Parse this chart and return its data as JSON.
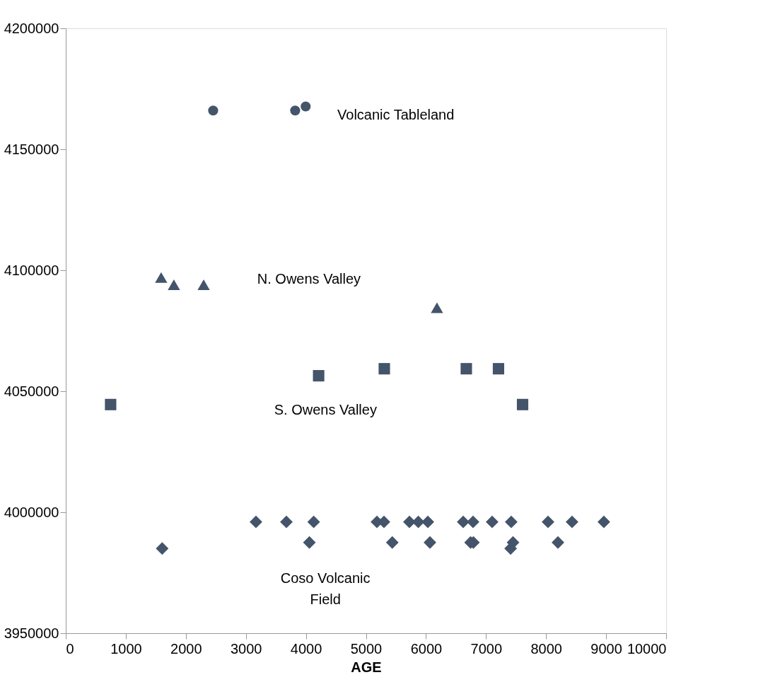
{
  "chart_data": {
    "type": "scatter",
    "xlabel": "AGE",
    "xlim": [
      0,
      10000
    ],
    "xticks": [
      0,
      1000,
      2000,
      3000,
      4000,
      5000,
      6000,
      7000,
      8000,
      9000,
      10000
    ],
    "ylim": [
      3950000,
      4200000
    ],
    "yticks": [
      3950000,
      4000000,
      4050000,
      4100000,
      4150000,
      4200000
    ],
    "grid": false,
    "series": [
      {
        "color": "#44546a",
        "marker": "circle",
        "x": [
          2455,
          3821,
          3996
        ],
        "values": [
          4166000,
          4166000,
          4167700
        ]
      },
      {
        "color": "#44546a",
        "marker": "triangle",
        "x": [
          1589,
          1801,
          2297,
          6183
        ],
        "values": [
          4097000,
          4094000,
          4094000,
          4084500
        ]
      },
      {
        "color": "#44546a",
        "marker": "square",
        "x": [
          747,
          4212,
          5306,
          6672,
          7208,
          7609
        ],
        "values": [
          4044500,
          4056400,
          4059300,
          4059300,
          4059300,
          4044500
        ]
      },
      {
        "color": "#44546a",
        "marker": "diamond",
        "x": [
          3168,
          3675,
          4130,
          5183,
          5300,
          5724,
          5872,
          6031,
          6620,
          6784,
          7102,
          7420,
          8033,
          8433,
          8963,
          1606,
          4058,
          5439,
          6066,
          6743,
          6790,
          7450,
          7410,
          8198
        ],
        "values": [
          3996000,
          3996000,
          3996000,
          3996000,
          3996000,
          3996000,
          3996000,
          3996000,
          3996000,
          3996000,
          3996000,
          3996000,
          3996000,
          3996000,
          3996000,
          3985000,
          3987500,
          3987500,
          3987500,
          3987500,
          3987500,
          3987500,
          3985000,
          3987500
        ]
      }
    ],
    "annotations": [
      "Volcanic Tableland",
      "N. Owens Valley",
      "S. Owens Valley",
      "Coso Volcanic\nField"
    ]
  }
}
